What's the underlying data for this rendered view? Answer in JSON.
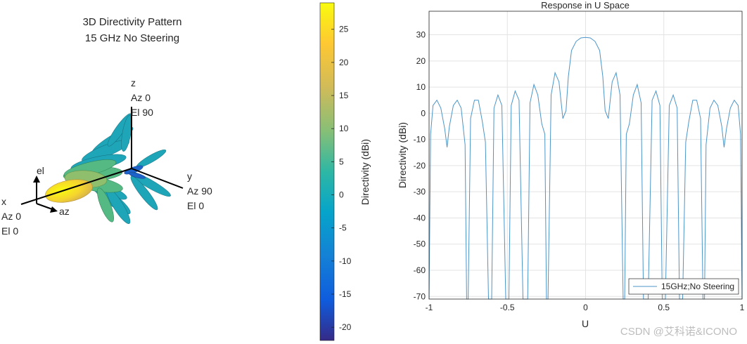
{
  "pattern3d": {
    "title_line1": "3D Directivity Pattern",
    "title_line2": "15 GHz No Steering",
    "axes_labels": {
      "z": "z",
      "z_az": "Az 0",
      "z_el": "El 90",
      "y": "y",
      "y_az": "Az 90",
      "y_el": "El 0",
      "x": "x",
      "x_az": "Az 0",
      "x_el": "El 0",
      "el": "el",
      "az": "az"
    }
  },
  "colorbar": {
    "label": "Directivity (dBi)",
    "min": -22,
    "max": 29,
    "ticks": [
      25,
      20,
      15,
      10,
      5,
      0,
      -5,
      -10,
      -15,
      -20
    ],
    "colormap": "parula"
  },
  "watermark": "CSDN @艾科诺&ICONO",
  "chart_data": {
    "type": "line",
    "title": "Response in U Space",
    "xlabel": "U",
    "ylabel": "Directivity (dBi)",
    "xlim": [
      -1,
      1
    ],
    "ylim": [
      -71,
      39
    ],
    "xticks": [
      -1,
      -0.5,
      0,
      0.5,
      1
    ],
    "yticks": [
      30,
      20,
      10,
      0,
      -10,
      -20,
      -30,
      -40,
      -50,
      -60,
      -70
    ],
    "grid": true,
    "legend": "bottom-right",
    "series": [
      {
        "name": "15GHz;No Steering",
        "color": "#4d95c8",
        "x": [
          -1.0,
          -0.99,
          -0.975,
          -0.95,
          -0.925,
          -0.9,
          -0.885,
          -0.87,
          -0.845,
          -0.82,
          -0.795,
          -0.77,
          -0.76,
          -0.75,
          -0.735,
          -0.71,
          -0.685,
          -0.66,
          -0.64,
          -0.62,
          -0.61,
          -0.6,
          -0.585,
          -0.56,
          -0.535,
          -0.51,
          -0.5,
          -0.49,
          -0.475,
          -0.45,
          -0.425,
          -0.4,
          -0.385,
          -0.37,
          -0.355,
          -0.33,
          -0.305,
          -0.28,
          -0.26,
          -0.25,
          -0.24,
          -0.22,
          -0.195,
          -0.17,
          -0.145,
          -0.125,
          -0.11,
          -0.09,
          -0.06,
          -0.03,
          0.0,
          0.03,
          0.06,
          0.09,
          0.11,
          0.125,
          0.145,
          0.17,
          0.195,
          0.22,
          0.24,
          0.25,
          0.26,
          0.28,
          0.305,
          0.33,
          0.355,
          0.37,
          0.385,
          0.4,
          0.425,
          0.45,
          0.475,
          0.49,
          0.5,
          0.51,
          0.535,
          0.56,
          0.585,
          0.6,
          0.61,
          0.62,
          0.64,
          0.66,
          0.685,
          0.71,
          0.735,
          0.75,
          0.76,
          0.77,
          0.795,
          0.82,
          0.845,
          0.87,
          0.885,
          0.9,
          0.925,
          0.95,
          0.975,
          0.99,
          1.0
        ],
        "y": [
          -71,
          -8,
          3,
          5,
          2,
          -6,
          -13,
          -5,
          3,
          5,
          2,
          -12,
          -71,
          -71,
          -2,
          5,
          5,
          -3,
          -11,
          -71,
          -71,
          -71,
          2,
          7,
          3,
          -71,
          -71,
          -71,
          3,
          8.5,
          5,
          -71,
          -71,
          -71,
          4,
          11,
          7,
          -4,
          -8,
          -71,
          -71,
          7,
          15.5,
          12,
          -2,
          1,
          14,
          24,
          27.5,
          28.8,
          29,
          28.8,
          27.5,
          24,
          14,
          1,
          -2,
          12,
          15.5,
          7,
          -71,
          -71,
          -8,
          -4,
          7,
          11,
          4,
          -71,
          -71,
          -71,
          5,
          8.5,
          3,
          -71,
          -71,
          -71,
          3,
          7,
          2,
          -71,
          -71,
          -71,
          -11,
          -3,
          5,
          5,
          -2,
          -71,
          -71,
          -12,
          2,
          5,
          3,
          -5,
          -13,
          -6,
          2,
          5,
          3,
          -8,
          -71
        ]
      }
    ]
  }
}
